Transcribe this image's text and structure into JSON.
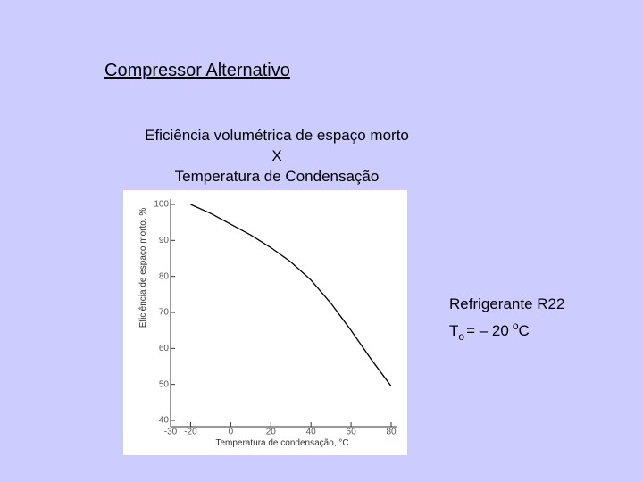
{
  "slide": {
    "title": "Compressor Alternativo",
    "subtitle": [
      "Eficiência volumétrica de espaço morto",
      "X",
      "Temperatura de Condensação"
    ],
    "refrigerant": "Refrigerante R22",
    "evaporation": {
      "symbol": "T",
      "subscript": "o",
      "equals": "= – 20",
      "superscript": "o",
      "unit": "C"
    }
  },
  "chart_data": {
    "type": "line",
    "x_label": "Temperatura de condensação, °C",
    "y_label": "Eficiência de espaço morto, %",
    "x": [
      -20,
      -10,
      0,
      10,
      20,
      30,
      40,
      50,
      60,
      70,
      80
    ],
    "values": [
      100,
      97.5,
      94.5,
      91.5,
      88,
      84,
      79,
      72.5,
      65,
      57,
      49.5
    ],
    "color": "#000000",
    "xlim": [
      -30,
      80
    ],
    "xticks": [
      -30,
      -20,
      0,
      20,
      40,
      60,
      80
    ],
    "ylim": [
      40,
      100
    ],
    "yticks": [
      40,
      50,
      60,
      70,
      80,
      90,
      100
    ]
  }
}
